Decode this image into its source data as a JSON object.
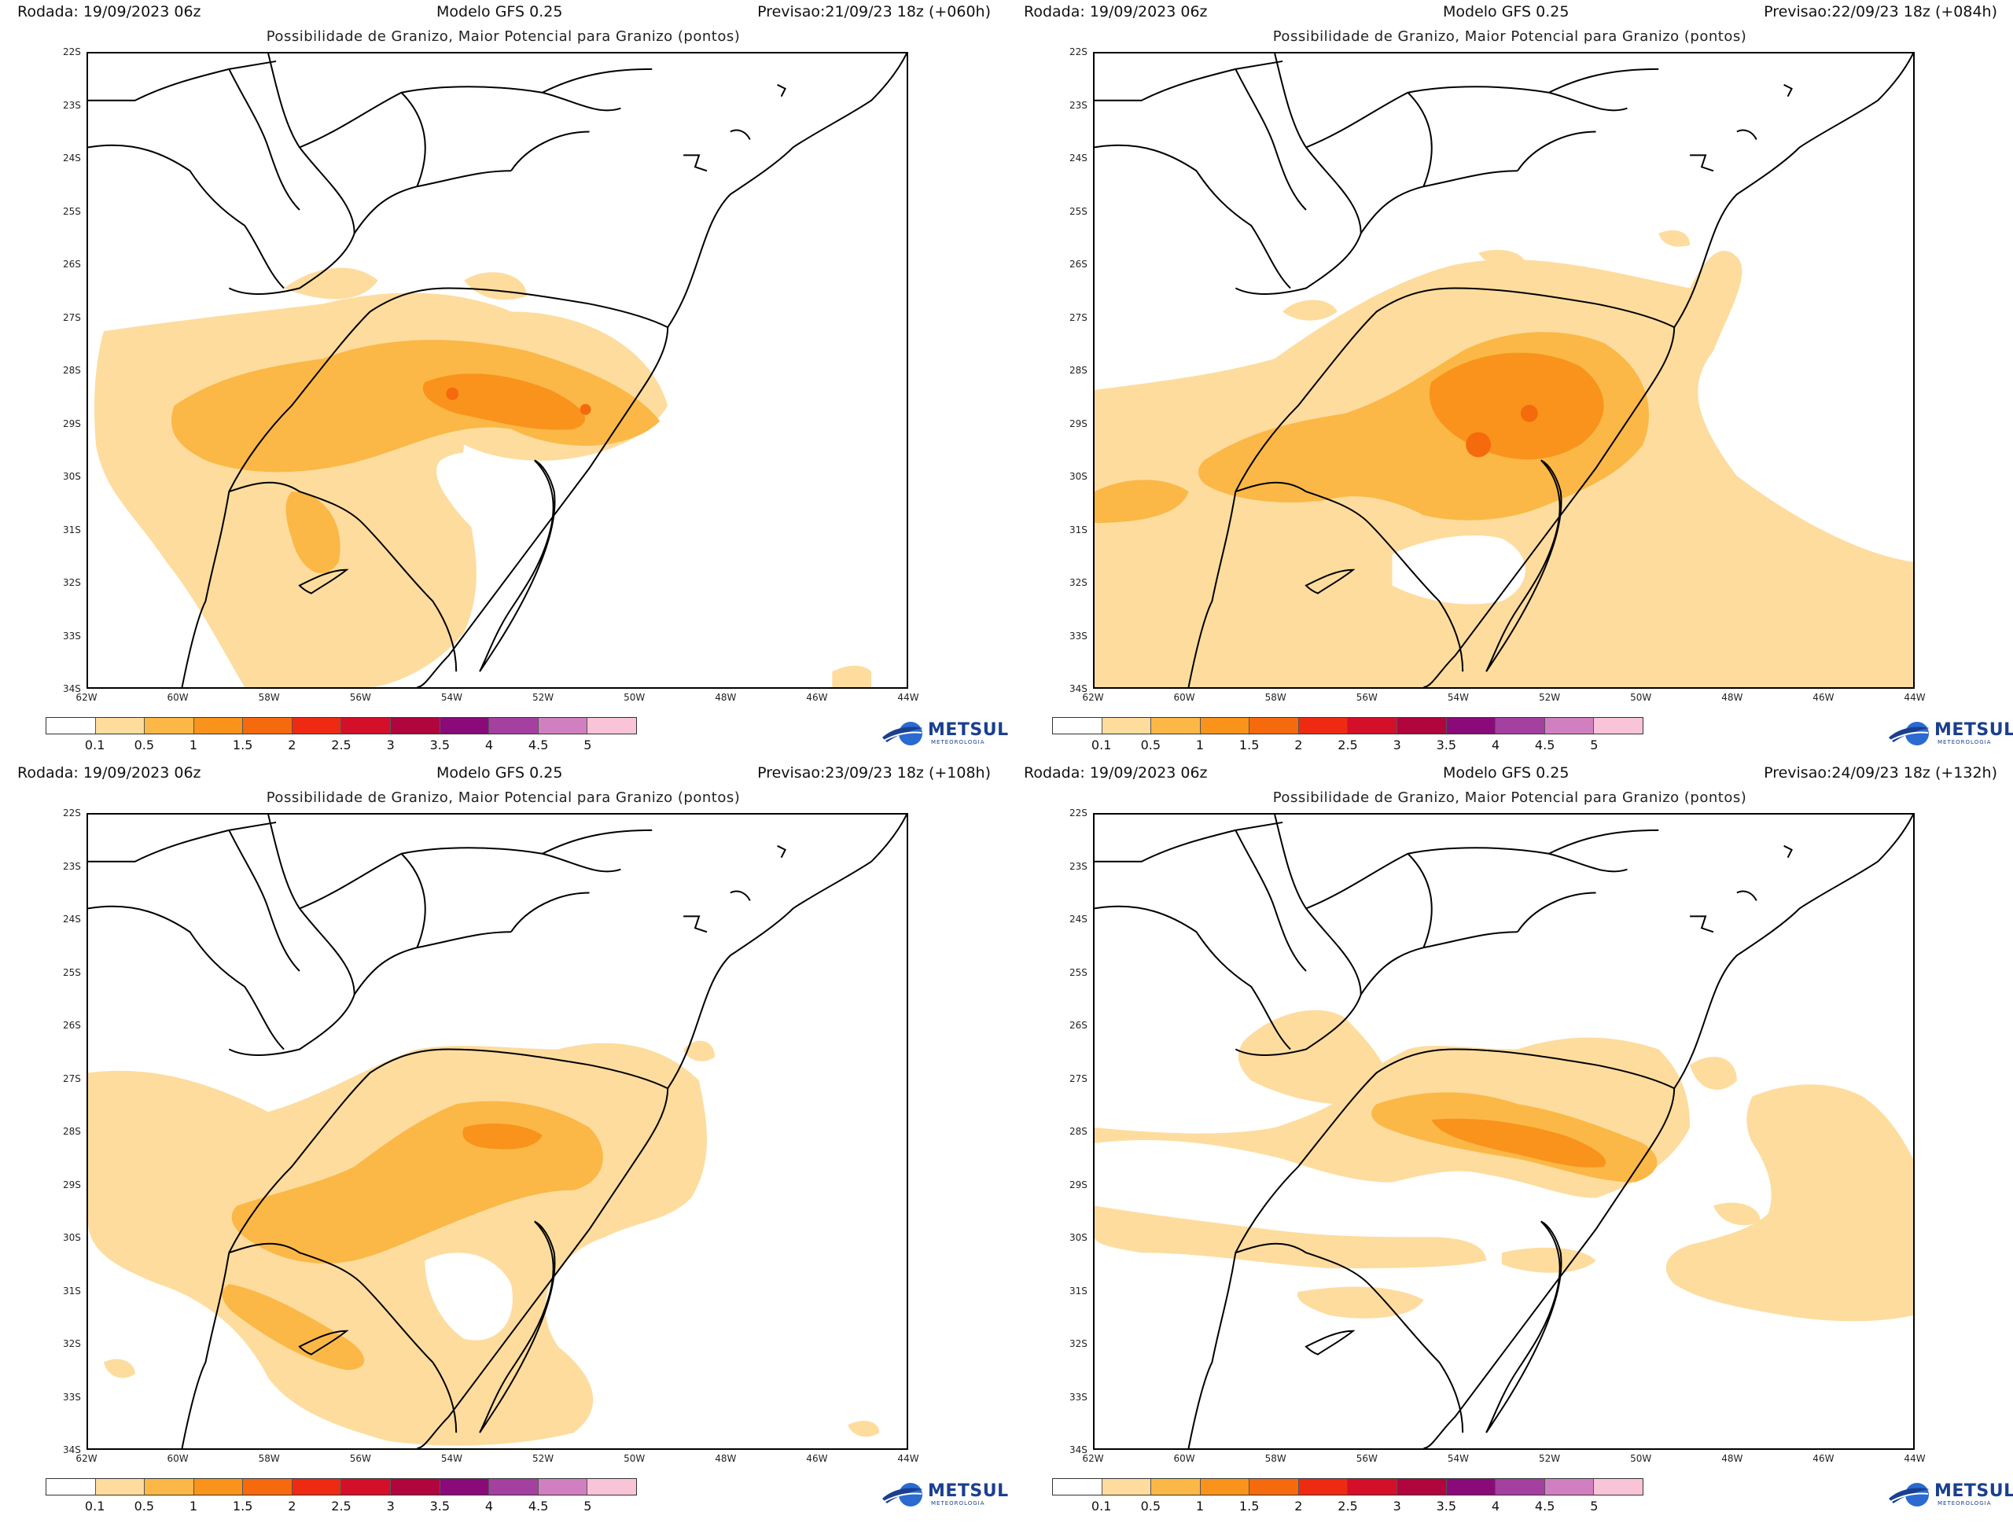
{
  "panels": [
    {
      "rodada": "Rodada: 19/09/2023 06z",
      "model": "Modelo GFS 0.25",
      "forecast": "Previsao:21/09/23 18z (+060h)"
    },
    {
      "rodada": "Rodada: 19/09/2023 06z",
      "model": "Modelo GFS 0.25",
      "forecast": "Previsao:22/09/23 18z (+084h)"
    },
    {
      "rodada": "Rodada: 19/09/2023 06z",
      "model": "Modelo GFS 0.25",
      "forecast": "Previsao:23/09/23 18z (+108h)"
    },
    {
      "rodada": "Rodada: 19/09/2023 06z",
      "model": "Modelo GFS 0.25",
      "forecast": "Previsao:24/09/23 18z (+132h)"
    }
  ],
  "subtitle": "Possibilidade de Granizo, Maior Potencial para Granizo (pontos)",
  "lat_labels": [
    "22S",
    "23S",
    "24S",
    "25S",
    "26S",
    "27S",
    "28S",
    "29S",
    "30S",
    "31S",
    "32S",
    "33S",
    "34S"
  ],
  "lon_labels": [
    "62W",
    "60W",
    "58W",
    "56W",
    "54W",
    "52W",
    "50W",
    "48W",
    "46W",
    "44W"
  ],
  "scale": {
    "labels": [
      "0.1",
      "0.5",
      "1",
      "1.5",
      "2",
      "2.5",
      "3",
      "3.5",
      "4",
      "4.5",
      "5"
    ],
    "colors": [
      "#ffffff",
      "#fddc9e",
      "#fbb846",
      "#f9931c",
      "#f56a0d",
      "#ee2a12",
      "#d40f2a",
      "#b0063d",
      "#8b0a7a",
      "#a440a0",
      "#d080c0",
      "#f9c4d8"
    ]
  },
  "logo": {
    "name": "METSUL",
    "sub": "METEOROLOGIA"
  },
  "fill_colors": {
    "light": "#fddc9e",
    "mid": "#fbb846",
    "strong": "#f9931c",
    "core": "#f56a0d"
  }
}
